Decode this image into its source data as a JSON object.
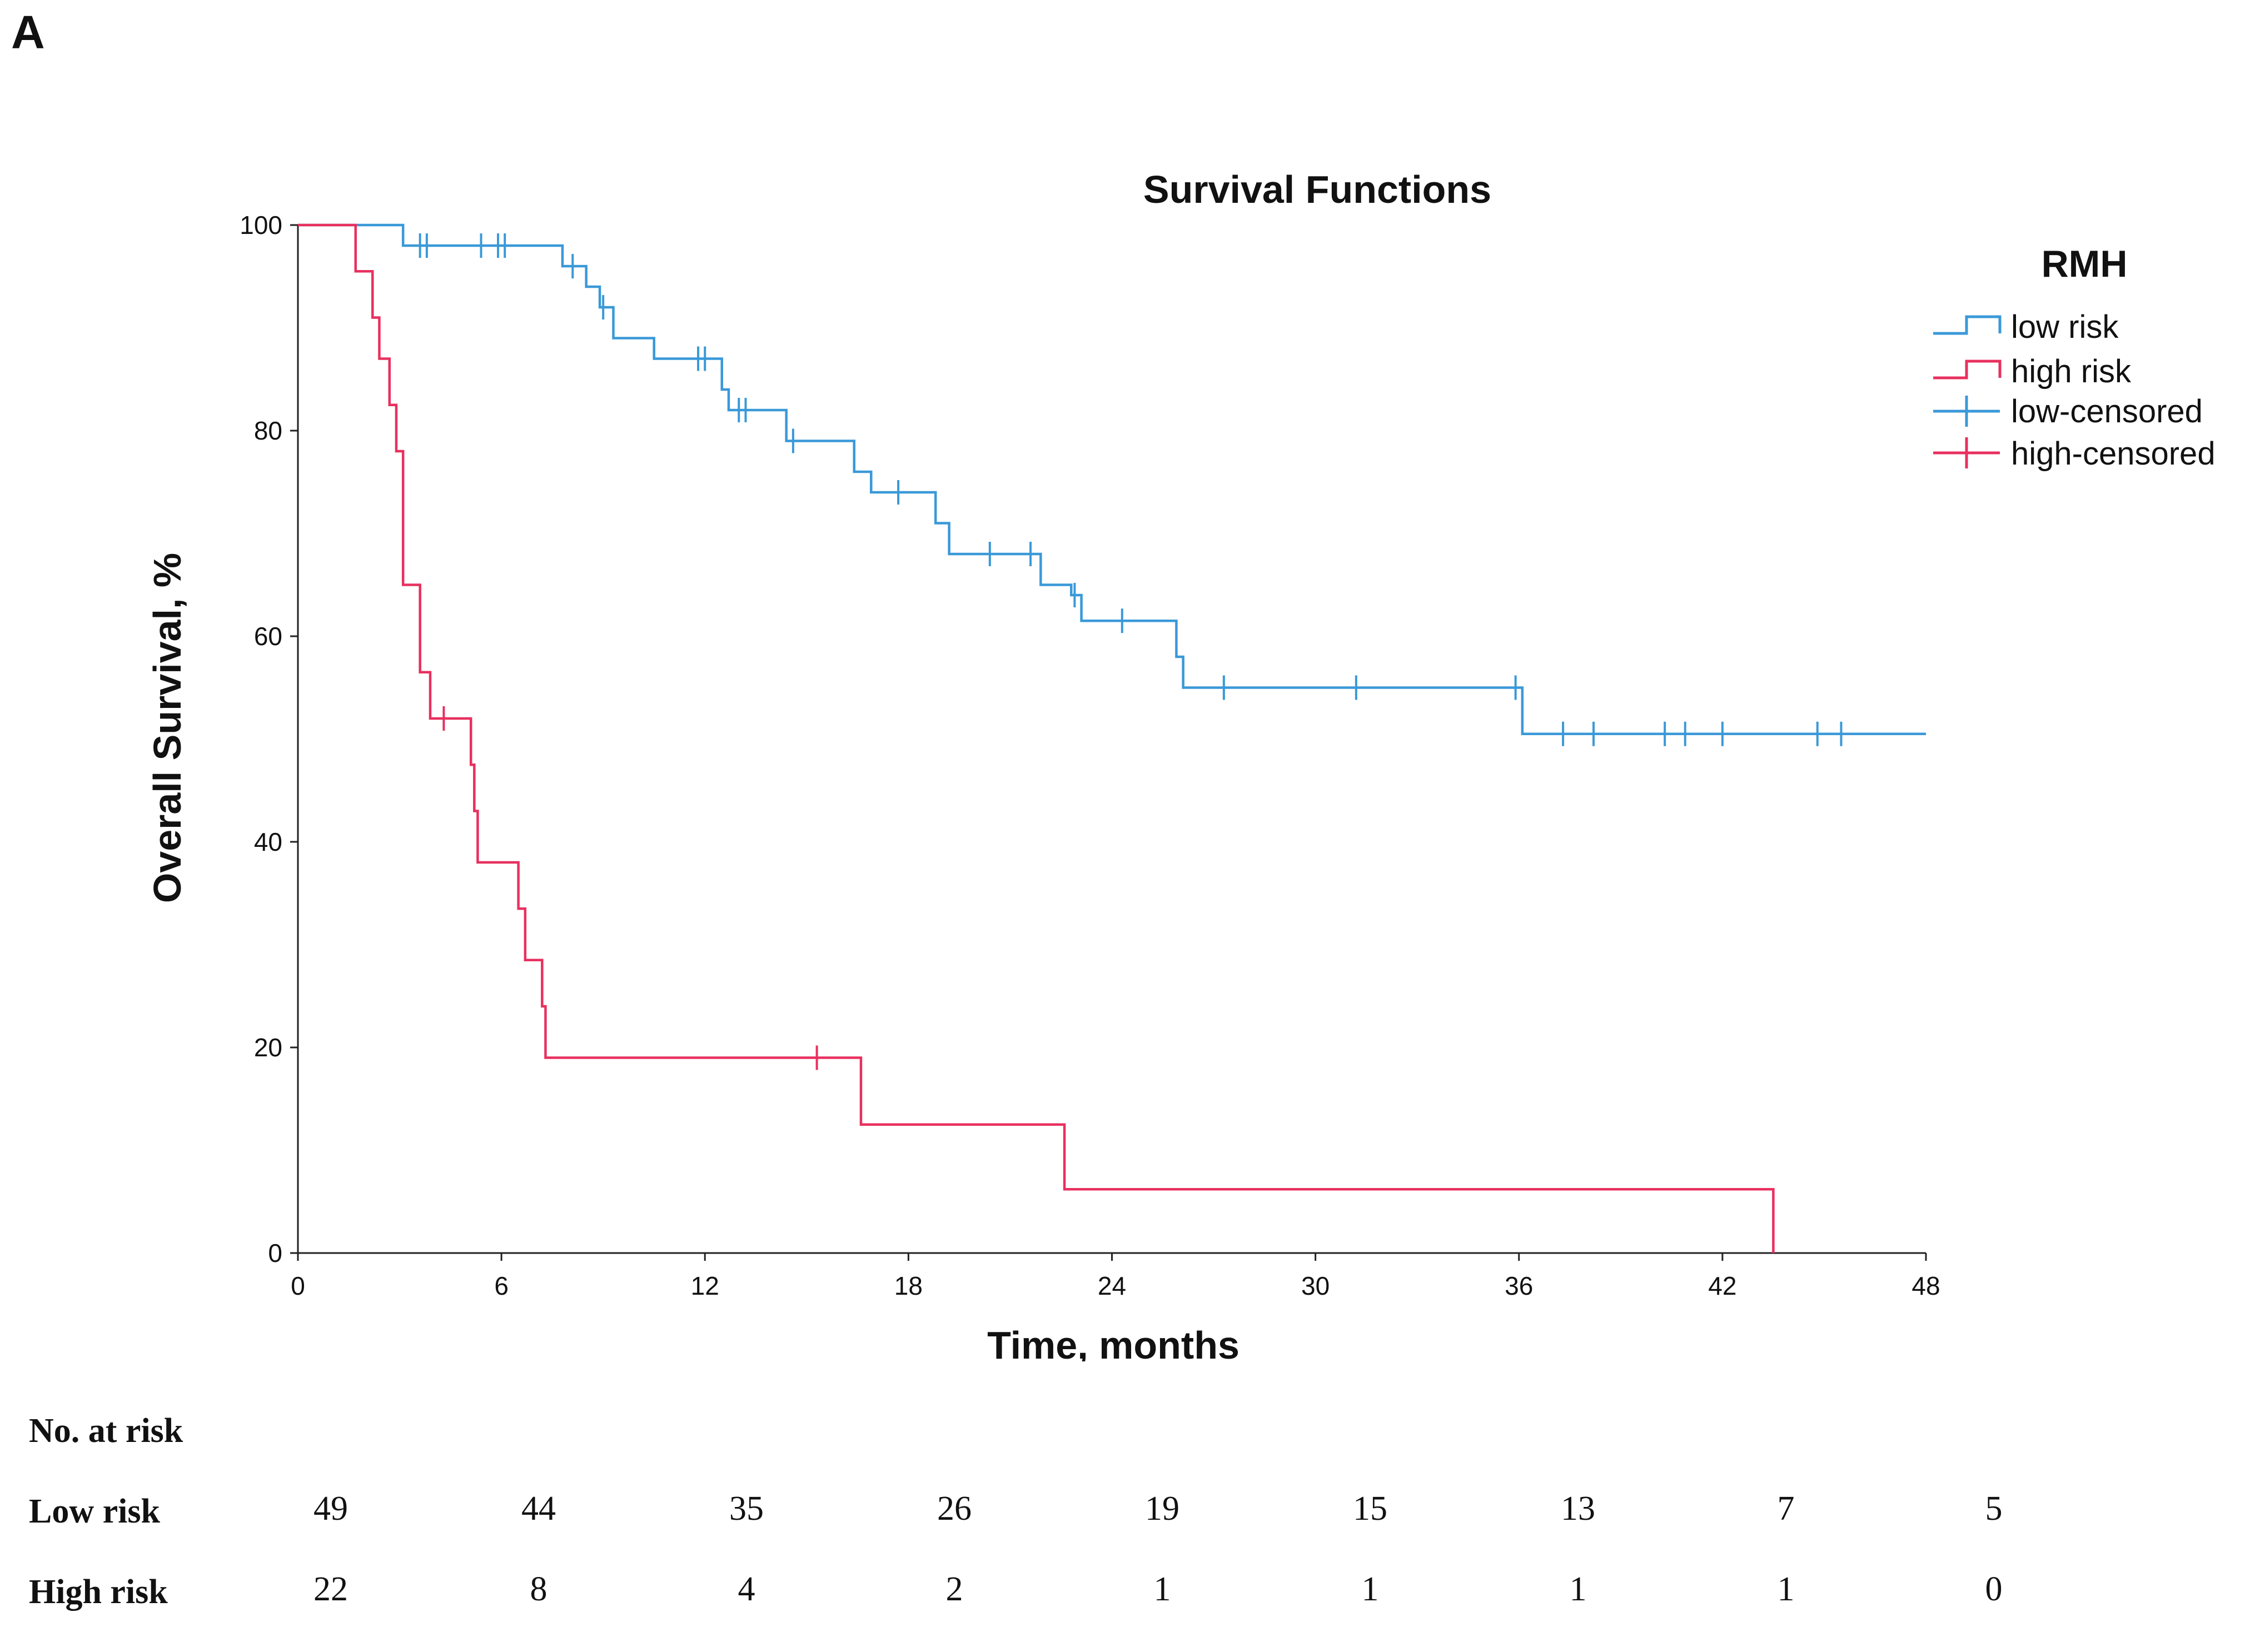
{
  "panel_label": "A",
  "chart_data": {
    "type": "line",
    "subtype": "kaplan-meier-step",
    "title": "Survival Functions",
    "xlabel": "Time, months",
    "ylabel": "Overall Survival, %",
    "xlim": [
      0,
      48
    ],
    "ylim": [
      0,
      100
    ],
    "xticks": [
      0,
      6,
      12,
      18,
      24,
      30,
      36,
      42,
      48
    ],
    "yticks": [
      0,
      20,
      40,
      60,
      80,
      100
    ],
    "grid": false,
    "legend": {
      "title": "RMH",
      "position": "top-right",
      "entries": [
        "low risk",
        "high risk",
        "low-censored",
        "high-censored"
      ]
    },
    "series": [
      {
        "name": "low risk",
        "color": "#3a99d8",
        "steps": [
          [
            0,
            100
          ],
          [
            3.1,
            98
          ],
          [
            7.8,
            96
          ],
          [
            8.5,
            94
          ],
          [
            8.9,
            92
          ],
          [
            9.3,
            89
          ],
          [
            10.5,
            87
          ],
          [
            12.5,
            84
          ],
          [
            12.7,
            82
          ],
          [
            14.4,
            79
          ],
          [
            16.4,
            76
          ],
          [
            16.9,
            74
          ],
          [
            18.8,
            71
          ],
          [
            19.2,
            68
          ],
          [
            21.9,
            65
          ],
          [
            22.8,
            64
          ],
          [
            23.1,
            61.5
          ],
          [
            25.9,
            58
          ],
          [
            26.1,
            55
          ],
          [
            36.1,
            50.5
          ]
        ],
        "end_x": 48,
        "censored": [
          3.6,
          3.8,
          5.4,
          5.9,
          6.1,
          8.1,
          9.0,
          11.8,
          12.0,
          13.0,
          13.2,
          14.6,
          17.7,
          20.4,
          21.6,
          22.9,
          24.3,
          27.3,
          31.2,
          35.9,
          37.3,
          38.2,
          40.3,
          40.9,
          42.0,
          44.8,
          45.5
        ]
      },
      {
        "name": "high risk",
        "color": "#e8305f",
        "steps": [
          [
            0,
            100
          ],
          [
            1.7,
            95.5
          ],
          [
            2.2,
            91
          ],
          [
            2.4,
            87
          ],
          [
            2.7,
            82.5
          ],
          [
            2.9,
            78
          ],
          [
            3.1,
            74
          ],
          [
            3.1,
            65
          ],
          [
            3.6,
            56.5
          ],
          [
            3.9,
            52
          ],
          [
            5.1,
            47.5
          ],
          [
            5.2,
            43
          ],
          [
            5.3,
            38
          ],
          [
            6.5,
            33.5
          ],
          [
            6.7,
            28.5
          ],
          [
            7.2,
            24
          ],
          [
            7.3,
            19
          ],
          [
            16.6,
            12.5
          ],
          [
            22.6,
            6.2
          ],
          [
            43.5,
            0
          ]
        ],
        "end_x": 43.5,
        "censored": [
          4.3,
          15.3
        ]
      }
    ]
  },
  "risk_table": {
    "header": "No. at risk",
    "rows": [
      {
        "label": "Low risk",
        "values": [
          "49",
          "44",
          "35",
          "26",
          "19",
          "15",
          "13",
          "7",
          "5"
        ]
      },
      {
        "label": "High risk",
        "values": [
          "22",
          "8",
          "4",
          "2",
          "1",
          "1",
          "1",
          "1",
          "0"
        ]
      }
    ]
  }
}
